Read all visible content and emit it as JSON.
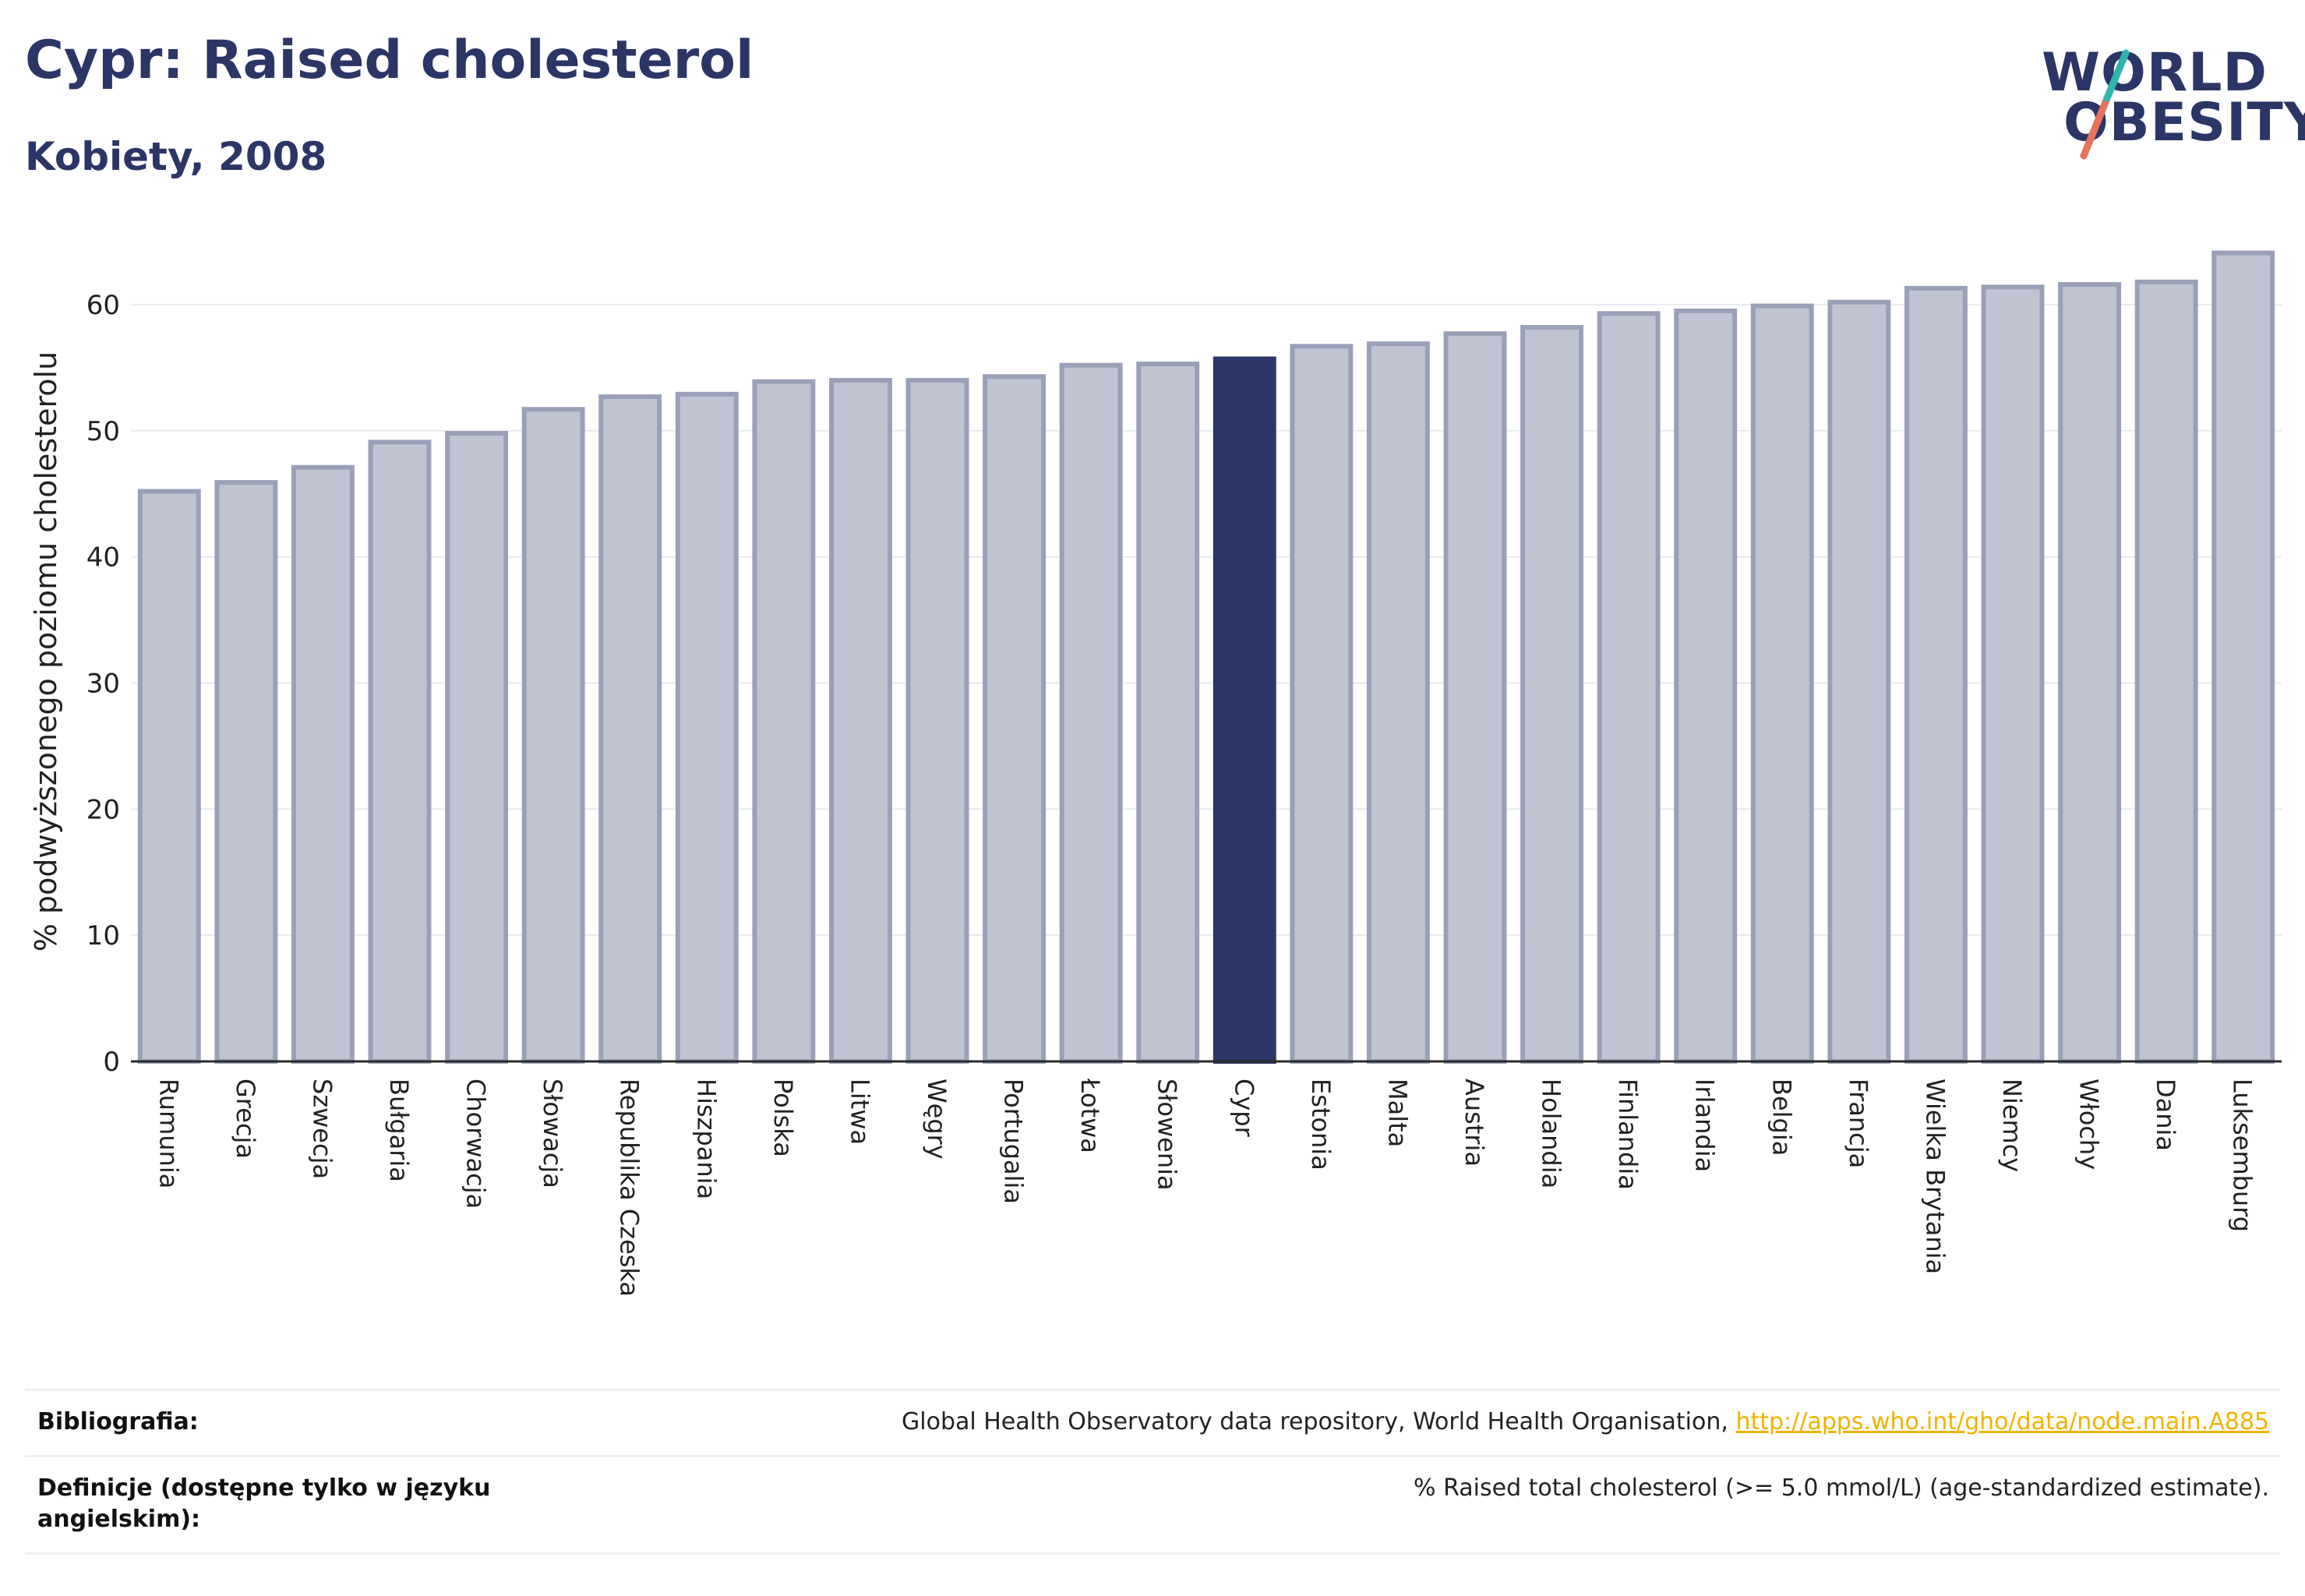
{
  "title": "Cypr: Raised cholesterol",
  "subtitle": "Kobiety, 2008",
  "logo": {
    "line1": "WORLD",
    "line2": "OBESITY",
    "accent_teal": "#2fb4ae",
    "accent_coral": "#e8735a"
  },
  "colors": {
    "bar": "#c0c3d1",
    "bar_border": "#9aa0b8",
    "highlight": "#2b3566",
    "grid": "#e9eaf0",
    "axis": "#2b2b2b"
  },
  "chart_data": {
    "type": "bar",
    "title": "",
    "xlabel": "",
    "ylabel": "% podwyższonego poziomu cholesterolu",
    "ylim": [
      0,
      65
    ],
    "yticks": [
      0,
      10,
      20,
      30,
      40,
      50,
      60
    ],
    "grid": true,
    "highlight": "Cypr",
    "categories": [
      "Rumunia",
      "Grecja",
      "Szwecja",
      "Bułgaria",
      "Chorwacja",
      "Słowacja",
      "Republika Czeska",
      "Hiszpania",
      "Polska",
      "Litwa",
      "Węgry",
      "Portugalia",
      "Łotwa",
      "Słowenia",
      "Cypr",
      "Estonia",
      "Malta",
      "Austria",
      "Holandia",
      "Finlandia",
      "Irlandia",
      "Belgia",
      "Francja",
      "Wielka Brytania",
      "Niemcy",
      "Włochy",
      "Dania",
      "Luksemburg"
    ],
    "values": [
      45.2,
      45.9,
      47.1,
      49.1,
      49.8,
      51.7,
      52.7,
      52.9,
      53.9,
      54.0,
      54.0,
      54.3,
      55.2,
      55.3,
      55.7,
      56.7,
      56.9,
      57.7,
      58.2,
      59.3,
      59.5,
      59.9,
      60.2,
      61.3,
      61.4,
      61.6,
      61.8,
      64.1
    ]
  },
  "footer": {
    "bibliography_label": "Bibliografia:",
    "bibliography_text": "Global Health Observatory data repository, World Health Organisation, ",
    "bibliography_link": "http://apps.who.int/gho/data/node.main.A885",
    "definitions_label": "Definicje (dostępne tylko w języku angielskim):",
    "definitions_text": "% Raised total cholesterol (>= 5.0 mmol/L) (age-standardized estimate)."
  }
}
